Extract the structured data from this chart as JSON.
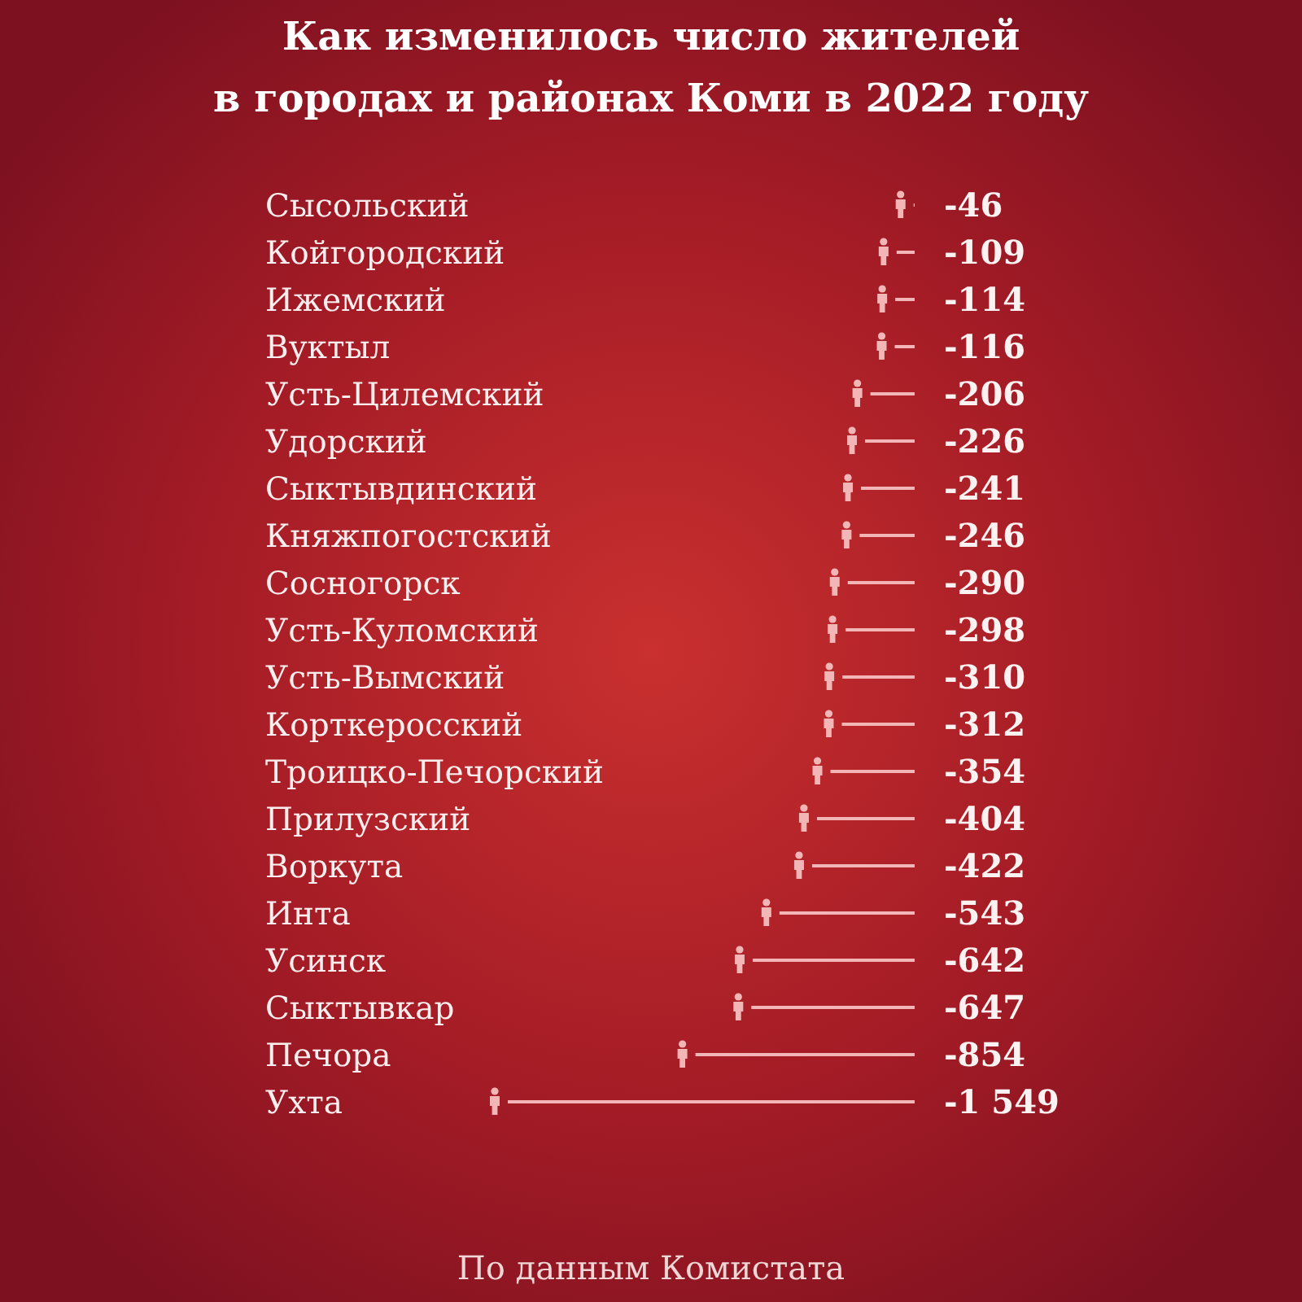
{
  "chart_data": {
    "type": "lollipop",
    "orientation": "horizontal",
    "title": "Как изменилось число жителей\nв городах и районах Коми в 2022 году",
    "categories": [
      "Сысольский",
      "Койгородский",
      "Ижемский",
      "Вуктыл",
      "Усть-Цилемский",
      "Удорский",
      "Сыктывдинский",
      "Княжпогостский",
      "Сосногорск",
      "Усть-Куломский",
      "Усть-Вымский",
      "Корткеросский",
      "Троицко-Печорский",
      "Прилузский",
      "Воркута",
      "Инта",
      "Усинск",
      "Сыктывкар",
      "Печора",
      "Ухта"
    ],
    "values": [
      -46,
      -109,
      -114,
      -116,
      -206,
      -226,
      -241,
      -246,
      -290,
      -298,
      -310,
      -312,
      -354,
      -404,
      -422,
      -543,
      -642,
      -647,
      -854,
      -1549
    ],
    "value_labels": [
      "-46",
      "-109",
      "-114",
      "-116",
      "-206",
      "-226",
      "-241",
      "-246",
      "-290",
      "-298",
      "-310",
      "-312",
      "-354",
      "-404",
      "-422",
      "-543",
      "-642",
      "-647",
      "-854",
      "-1 549"
    ],
    "color": "#f2b6b6",
    "annotations": [
      "По данным Комистата"
    ]
  }
}
